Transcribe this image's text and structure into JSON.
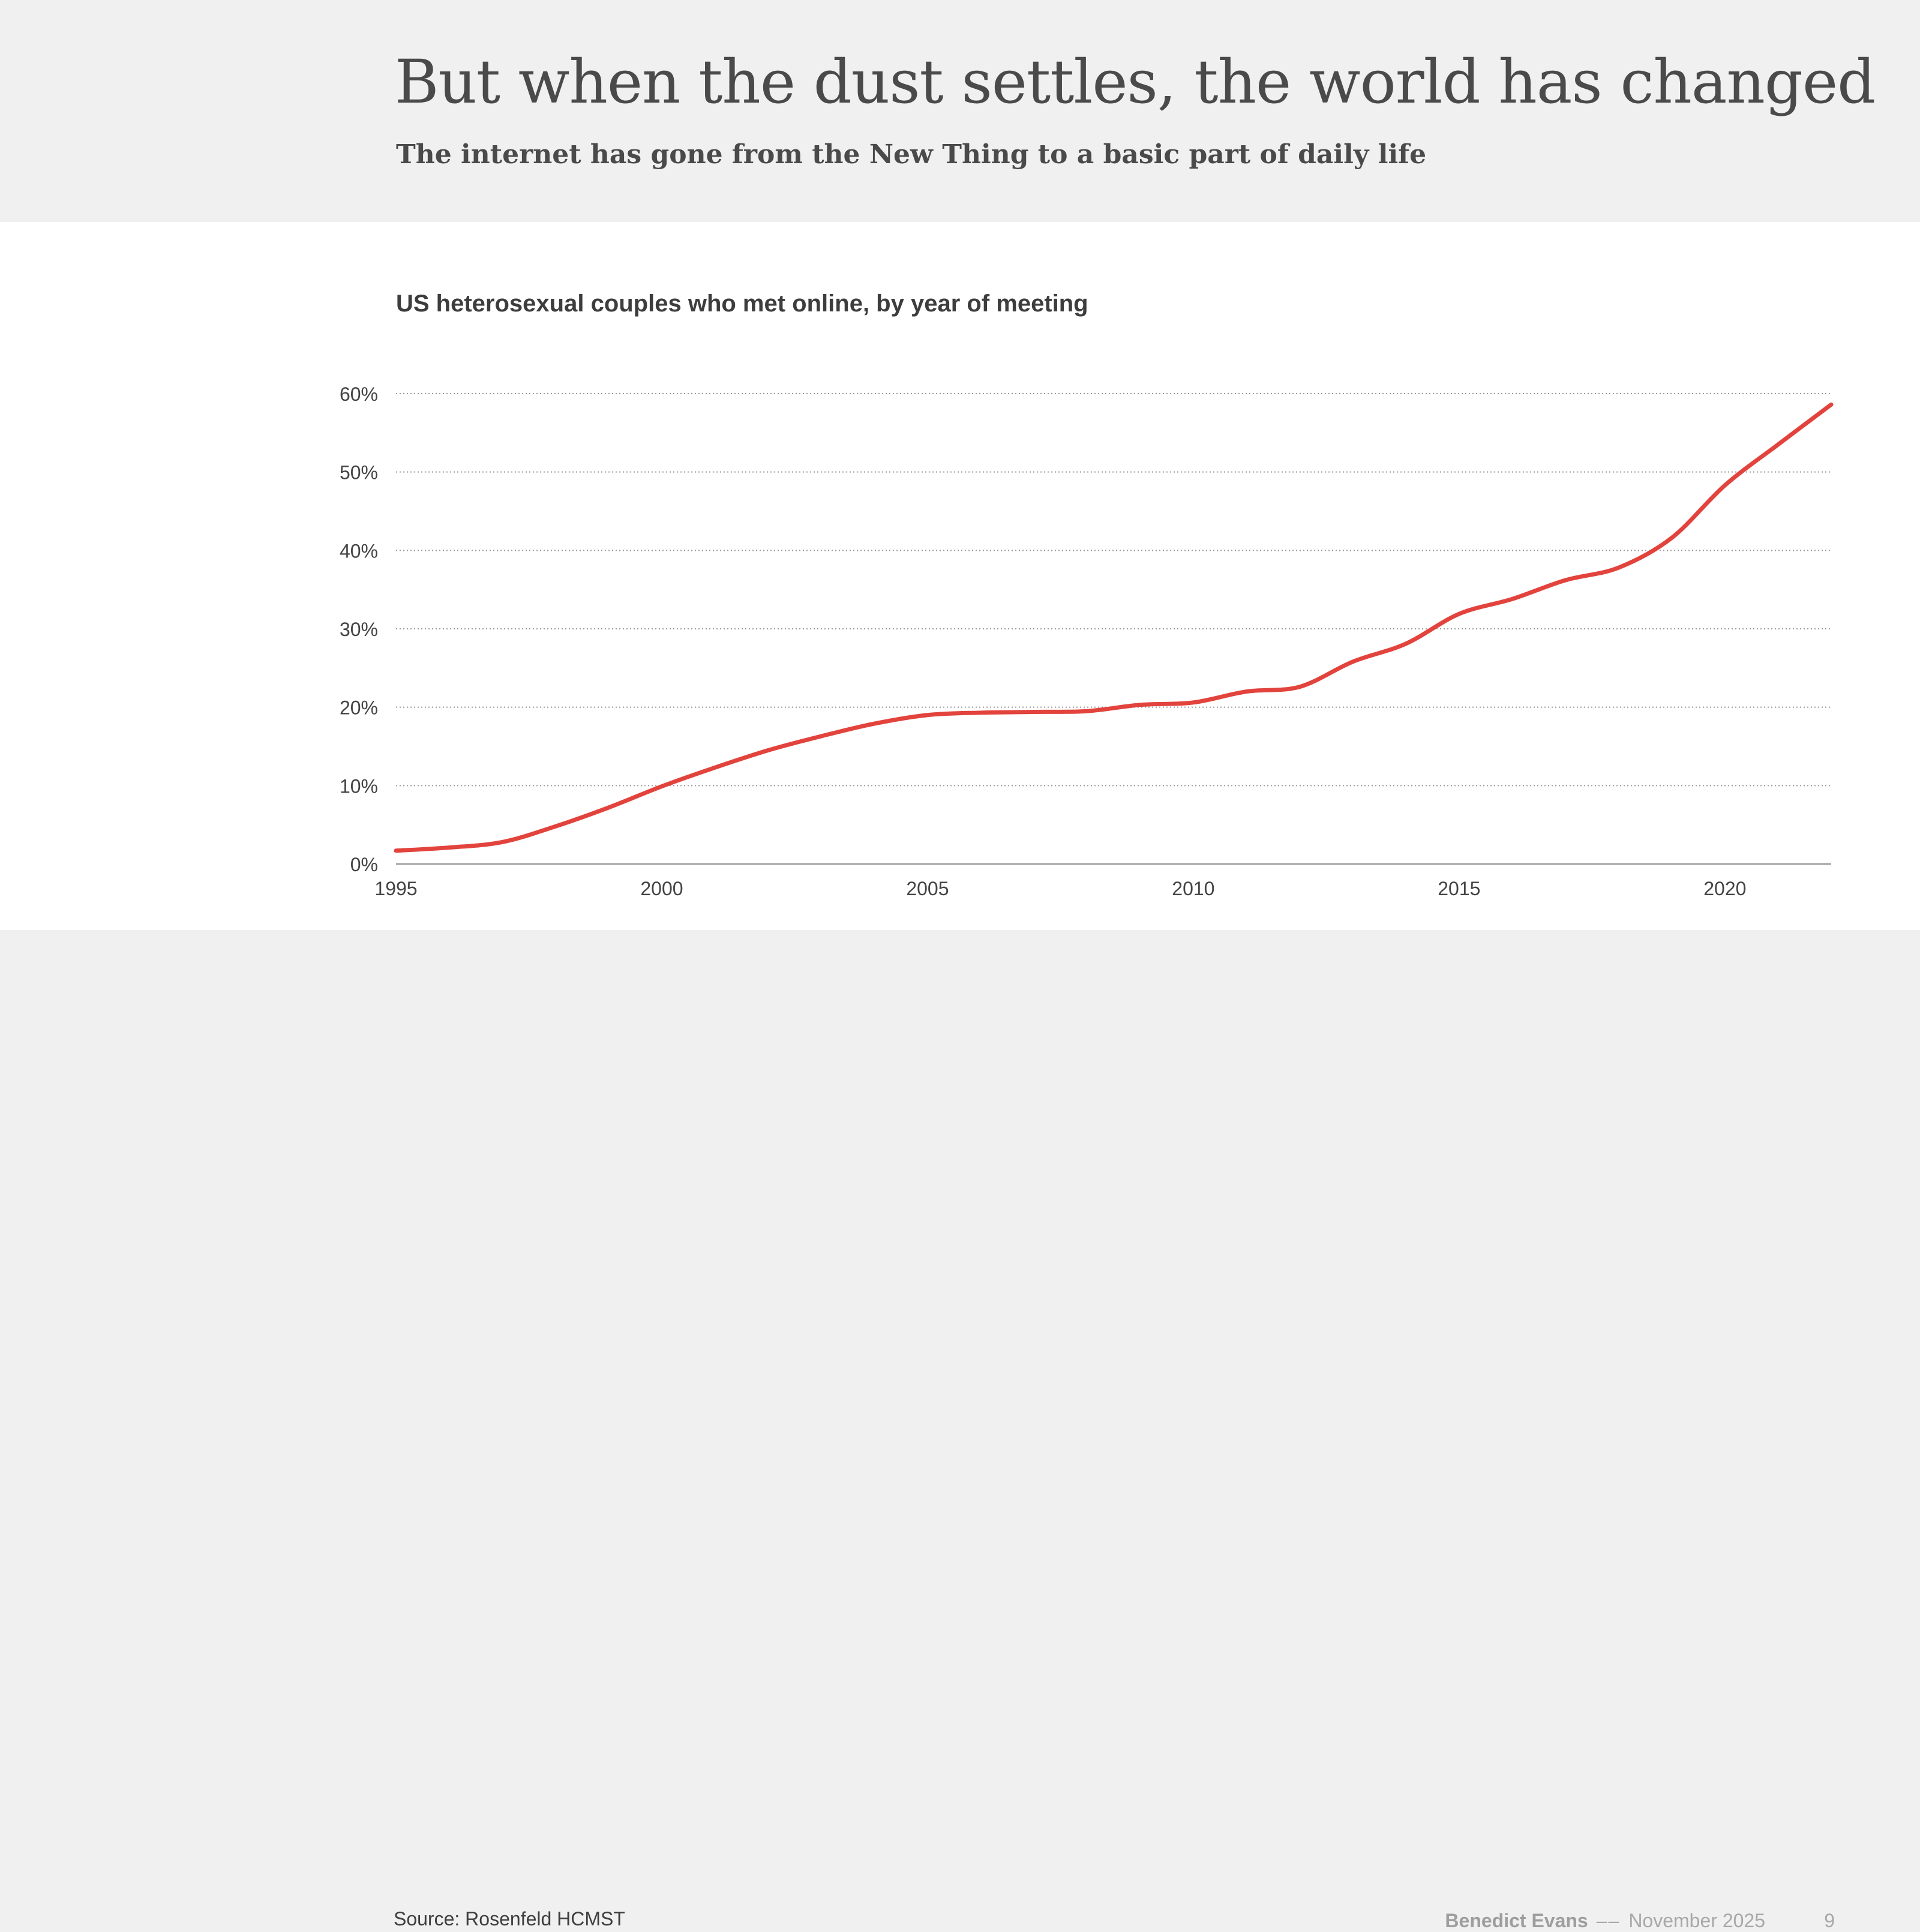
{
  "slide": {
    "title": "But when the dust settles, the world has changed",
    "subtitle": "The internet has gone from the New Thing to a basic part of daily life"
  },
  "footer": {
    "source": "Source: Rosenfeld HCMST",
    "author": "Benedict Evans",
    "separator": "––",
    "date": "November 2025",
    "page": "9"
  },
  "colors": {
    "line": "#e2433c",
    "grid": "#9a9a9a",
    "axis": "#8c8c8c",
    "tick_text": "#444444"
  },
  "chart_data": {
    "type": "line",
    "title": "US heterosexual couples who met online, by year of meeting",
    "xlabel": "",
    "ylabel": "",
    "xlim": [
      1995,
      2022
    ],
    "ylim": [
      0,
      60
    ],
    "x_ticks": [
      1995,
      2000,
      2005,
      2010,
      2015,
      2020
    ],
    "x_tick_labels": [
      "1995",
      "2000",
      "2005",
      "2010",
      "2015",
      "2020"
    ],
    "y_ticks": [
      0,
      10,
      20,
      30,
      40,
      50,
      60
    ],
    "y_tick_labels": [
      "0%",
      "10%",
      "20%",
      "30%",
      "40%",
      "50%",
      "60%"
    ],
    "grid": true,
    "series": [
      {
        "name": "Met online",
        "x": [
          1995,
          1996,
          1997,
          1998,
          1999,
          2000,
          2001,
          2002,
          2003,
          2004,
          2005,
          2006,
          2007,
          2008,
          2009,
          2010,
          2011,
          2012,
          2013,
          2014,
          2015,
          2016,
          2017,
          2018,
          2019,
          2020,
          2021,
          2022
        ],
        "values": [
          1.7,
          2.1,
          2.8,
          4.8,
          7.2,
          9.9,
          12.3,
          14.5,
          16.3,
          17.9,
          19.0,
          19.3,
          19.4,
          19.5,
          20.3,
          20.6,
          22.0,
          22.6,
          25.8,
          28.1,
          31.9,
          33.8,
          36.2,
          37.8,
          41.6,
          48.3,
          53.5,
          58.6
        ]
      }
    ]
  }
}
